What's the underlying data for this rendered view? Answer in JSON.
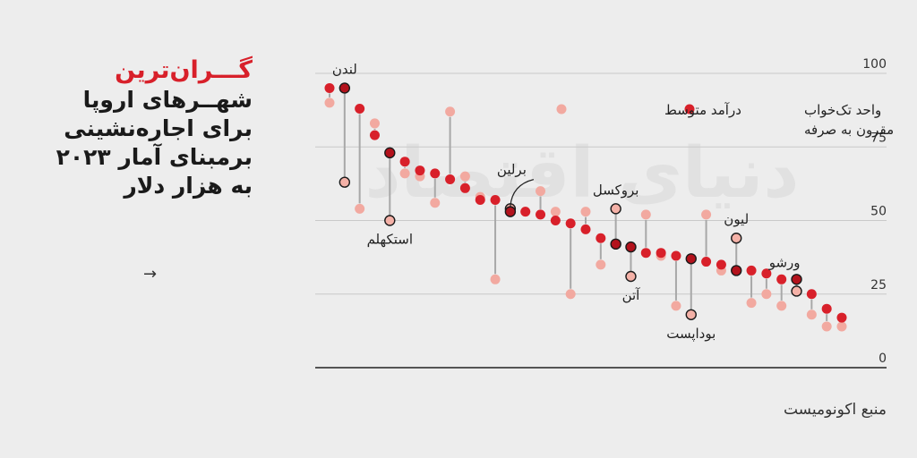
{
  "headline": {
    "line1": "گـــران‌ترین",
    "line2": "شهــرهای اروپا",
    "line3": "برای اجاره‌نشینی",
    "line4": "برمبنای آمار ۲۰۲۳",
    "line5": "به هزار دلار"
  },
  "source": "منبع اکونومیست",
  "watermark": "دنیای اقتصاد",
  "colors": {
    "rent": "#d8202a",
    "income": "#f2a9a0",
    "connector": "#a8a8a8",
    "highlight_rent": "#b3121c",
    "highlight_income": "#f4b1a7",
    "outline": "#1a1a1a"
  },
  "chart_data": {
    "type": "scatter",
    "title": "",
    "xlabel": "",
    "ylabel": "",
    "ylim": [
      0,
      100
    ],
    "y_ticks": [
      0,
      25,
      50,
      75,
      100
    ],
    "grid": true,
    "legend_position": "top",
    "series": [
      {
        "name": "واحد تک‌خواب مقرون به صرفه",
        "key": "rent"
      },
      {
        "name": "درآمد متوسط",
        "key": "income"
      }
    ],
    "cities": [
      {
        "rent": 95,
        "income": 90
      },
      {
        "rent": 95,
        "income": 63,
        "label": "لندن",
        "label_on": "rent",
        "highlight": true
      },
      {
        "rent": 88,
        "income": 54
      },
      {
        "rent": 79,
        "income": 83
      },
      {
        "rent": 73,
        "income": 50,
        "label": "استکهلم",
        "label_on": "income",
        "highlight": true
      },
      {
        "rent": 70,
        "income": 66
      },
      {
        "rent": 67,
        "income": 65
      },
      {
        "rent": 66,
        "income": 56
      },
      {
        "rent": 64,
        "income": 87
      },
      {
        "rent": 61,
        "income": 65
      },
      {
        "rent": 57,
        "income": 58
      },
      {
        "rent": 57,
        "income": 30
      },
      {
        "rent": 53,
        "income": 54,
        "label": "برلین",
        "label_on": "rent",
        "highlight": true
      },
      {
        "rent": 53,
        "income": 53
      },
      {
        "rent": 52,
        "income": 60
      },
      {
        "rent": 50,
        "income": 53
      },
      {
        "rent": 49,
        "income": 25
      },
      {
        "rent": 47,
        "income": 53
      },
      {
        "rent": 44,
        "income": 35
      },
      {
        "rent": 42,
        "income": 54,
        "label": "بروکسل",
        "label_on": "income",
        "highlight": true
      },
      {
        "rent": 41,
        "income": 31,
        "label": "آتن",
        "label_on": "income",
        "highlight": true
      },
      {
        "rent": 39,
        "income": 52
      },
      {
        "rent": 39,
        "income": 38
      },
      {
        "rent": 38,
        "income": 21
      },
      {
        "rent": 37,
        "income": 18,
        "label": "بوداپست",
        "label_on": "income",
        "highlight": true
      },
      {
        "rent": 36,
        "income": 52
      },
      {
        "rent": 35,
        "income": 33
      },
      {
        "rent": 33,
        "income": 44,
        "label": "لیون",
        "label_on": "income",
        "highlight": true
      },
      {
        "rent": 33,
        "income": 22
      },
      {
        "rent": 32,
        "income": 25
      },
      {
        "rent": 30,
        "income": 21
      },
      {
        "rent": 30,
        "income": 26,
        "label": "ورشو",
        "label_on": "rent",
        "highlight": true
      },
      {
        "rent": 25,
        "income": 18
      },
      {
        "rent": 20,
        "income": 14
      },
      {
        "rent": 17,
        "income": 14
      }
    ]
  }
}
